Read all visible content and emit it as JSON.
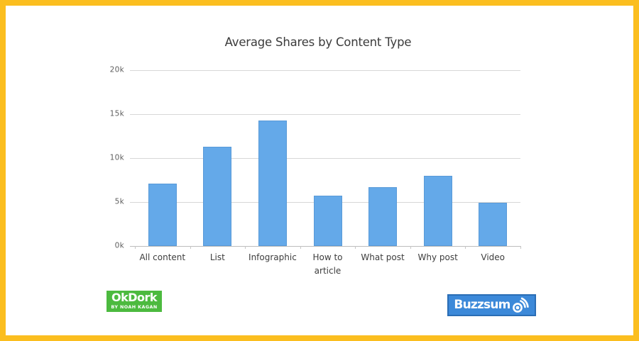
{
  "frame": {
    "border_color": "#FBBE1F",
    "background_color": "#FFFFFF"
  },
  "chart_data": {
    "type": "bar",
    "title": "Average Shares by Content Type",
    "categories": [
      "All content",
      "List",
      "Infographic",
      "How to article",
      "What post",
      "Why post",
      "Video"
    ],
    "values": [
      7100,
      11300,
      14300,
      5700,
      6700,
      8000,
      4900
    ],
    "ylim": [
      0,
      20000
    ],
    "ytick_step": 5000,
    "ytick_labels": [
      "0k",
      "5k",
      "10k",
      "15k",
      "20k"
    ],
    "bar_color": "#64A9E9",
    "grid": true,
    "legend": false,
    "xlabel": "",
    "ylabel": ""
  },
  "branding": {
    "okdork": {
      "name": "OkDork",
      "tagline": "BY NOAH KAGAN",
      "bg_color": "#4CBA3F"
    },
    "buzzsumo": {
      "name": "Buzzsumo",
      "display_text": "Buzzsum",
      "icon": "broadcast-o-icon",
      "bg_color": "#3C89D9",
      "border_color": "#2A6DB5"
    }
  }
}
